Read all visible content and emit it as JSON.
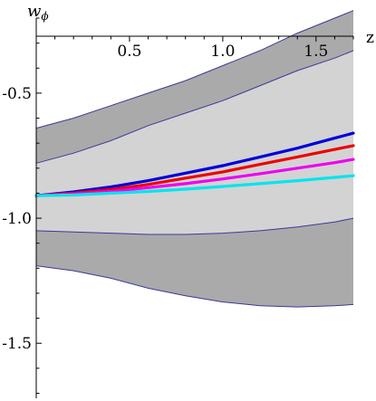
{
  "chart_data": {
    "type": "area",
    "title": "",
    "xlabel": "z",
    "ylabel": "w",
    "ylabel_subscript": "ϕ",
    "xlim": [
      0,
      1.7
    ],
    "ylim": [
      -1.72,
      -0.2
    ],
    "x_ticks": [
      0.5,
      1.0,
      1.5
    ],
    "x_tick_labels": [
      "0.5",
      "1.0",
      "1.5"
    ],
    "y_ticks": [
      -0.5,
      -1.0,
      -1.5
    ],
    "y_tick_labels": [
      "-0.5",
      "-1.0",
      "-1.5"
    ],
    "grid": false,
    "legend": "none",
    "bands": [
      {
        "name": "outer",
        "color": "#aaaaaa",
        "stroke": "#3a3a9a",
        "x": [
          0,
          0.2,
          0.4,
          0.6,
          0.8,
          1.0,
          1.2,
          1.4,
          1.6,
          1.7
        ],
        "upper": [
          -0.64,
          -0.6,
          -0.55,
          -0.5,
          -0.45,
          -0.39,
          -0.33,
          -0.26,
          -0.2,
          -0.17
        ],
        "lower": [
          -1.19,
          -1.21,
          -1.24,
          -1.28,
          -1.31,
          -1.335,
          -1.35,
          -1.355,
          -1.35,
          -1.345
        ]
      },
      {
        "name": "inner",
        "color": "#d3d3d3",
        "stroke": "#3a3a9a",
        "x": [
          0,
          0.2,
          0.4,
          0.6,
          0.8,
          1.0,
          1.2,
          1.4,
          1.6,
          1.7
        ],
        "upper": [
          -0.78,
          -0.74,
          -0.69,
          -0.63,
          -0.58,
          -0.53,
          -0.47,
          -0.41,
          -0.36,
          -0.33
        ],
        "lower": [
          -1.05,
          -1.055,
          -1.06,
          -1.065,
          -1.065,
          -1.06,
          -1.05,
          -1.035,
          -1.015,
          -1.0
        ]
      }
    ],
    "series": [
      {
        "color": "#0000dd",
        "x": [
          0,
          0.2,
          0.4,
          0.6,
          0.8,
          1.0,
          1.2,
          1.4,
          1.6,
          1.7
        ],
        "values": [
          -0.91,
          -0.895,
          -0.875,
          -0.85,
          -0.82,
          -0.79,
          -0.755,
          -0.72,
          -0.68,
          -0.66
        ]
      },
      {
        "color": "#ee0000",
        "x": [
          0,
          0.2,
          0.4,
          0.6,
          0.8,
          1.0,
          1.2,
          1.4,
          1.6,
          1.7
        ],
        "values": [
          -0.91,
          -0.9,
          -0.885,
          -0.865,
          -0.84,
          -0.815,
          -0.785,
          -0.755,
          -0.725,
          -0.71
        ]
      },
      {
        "color": "#ee00ee",
        "x": [
          0,
          0.2,
          0.4,
          0.6,
          0.8,
          1.0,
          1.2,
          1.4,
          1.6,
          1.7
        ],
        "values": [
          -0.91,
          -0.903,
          -0.893,
          -0.878,
          -0.862,
          -0.843,
          -0.822,
          -0.8,
          -0.778,
          -0.765
        ]
      },
      {
        "color": "#00e5ee",
        "x": [
          0,
          0.2,
          0.4,
          0.6,
          0.8,
          1.0,
          1.2,
          1.4,
          1.6,
          1.7
        ],
        "values": [
          -0.91,
          -0.907,
          -0.9,
          -0.893,
          -0.884,
          -0.873,
          -0.862,
          -0.85,
          -0.837,
          -0.83
        ]
      }
    ]
  }
}
